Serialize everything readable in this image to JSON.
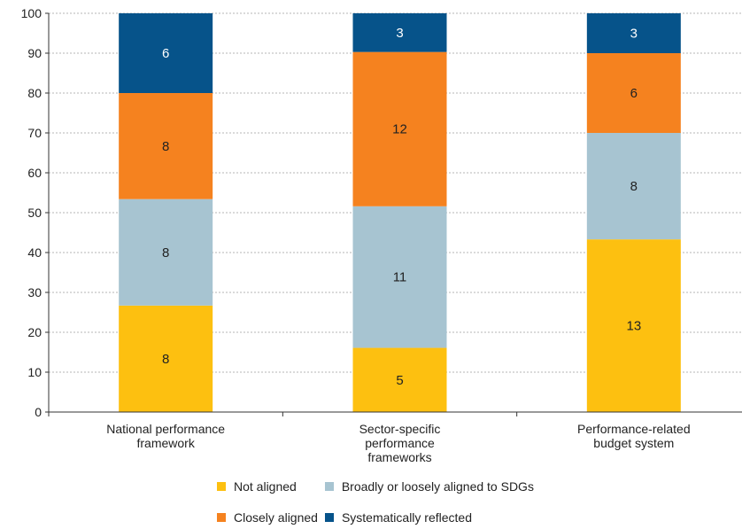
{
  "chart_data": {
    "type": "bar",
    "stacked": true,
    "categories": [
      [
        "National performance",
        "framework"
      ],
      [
        "Sector-specific",
        "performance",
        "frameworks"
      ],
      [
        "Performance-related",
        "budget system"
      ]
    ],
    "series": [
      {
        "name": "Not aligned",
        "color": "#FDC010",
        "values": [
          26.7,
          16.1,
          43.3
        ],
        "labels": [
          "8",
          "5",
          "13"
        ],
        "label_color": "#222222"
      },
      {
        "name": "Broadly or loosely aligned to SDGs",
        "color": "#A7C4D1",
        "values": [
          26.7,
          35.5,
          26.7
        ],
        "labels": [
          "8",
          "11",
          "8"
        ],
        "label_color": "#222222"
      },
      {
        "name": "Closely aligned",
        "color": "#F5821F",
        "values": [
          26.6,
          38.7,
          20.0
        ],
        "labels": [
          "8",
          "12",
          "6"
        ],
        "label_color": "#222222"
      },
      {
        "name": "Systematically reflected",
        "color": "#06538A",
        "values": [
          20.0,
          9.7,
          10.0
        ],
        "labels": [
          "6",
          "3",
          "3"
        ],
        "label_color": "#ffffff"
      }
    ],
    "ylim": [
      0,
      100
    ],
    "yticks": [
      0,
      10,
      20,
      30,
      40,
      50,
      60,
      70,
      80,
      90,
      100
    ],
    "grid": true,
    "legend_position": "bottom"
  },
  "legend": {
    "rows": [
      [
        0,
        1
      ],
      [
        2,
        3
      ]
    ]
  }
}
